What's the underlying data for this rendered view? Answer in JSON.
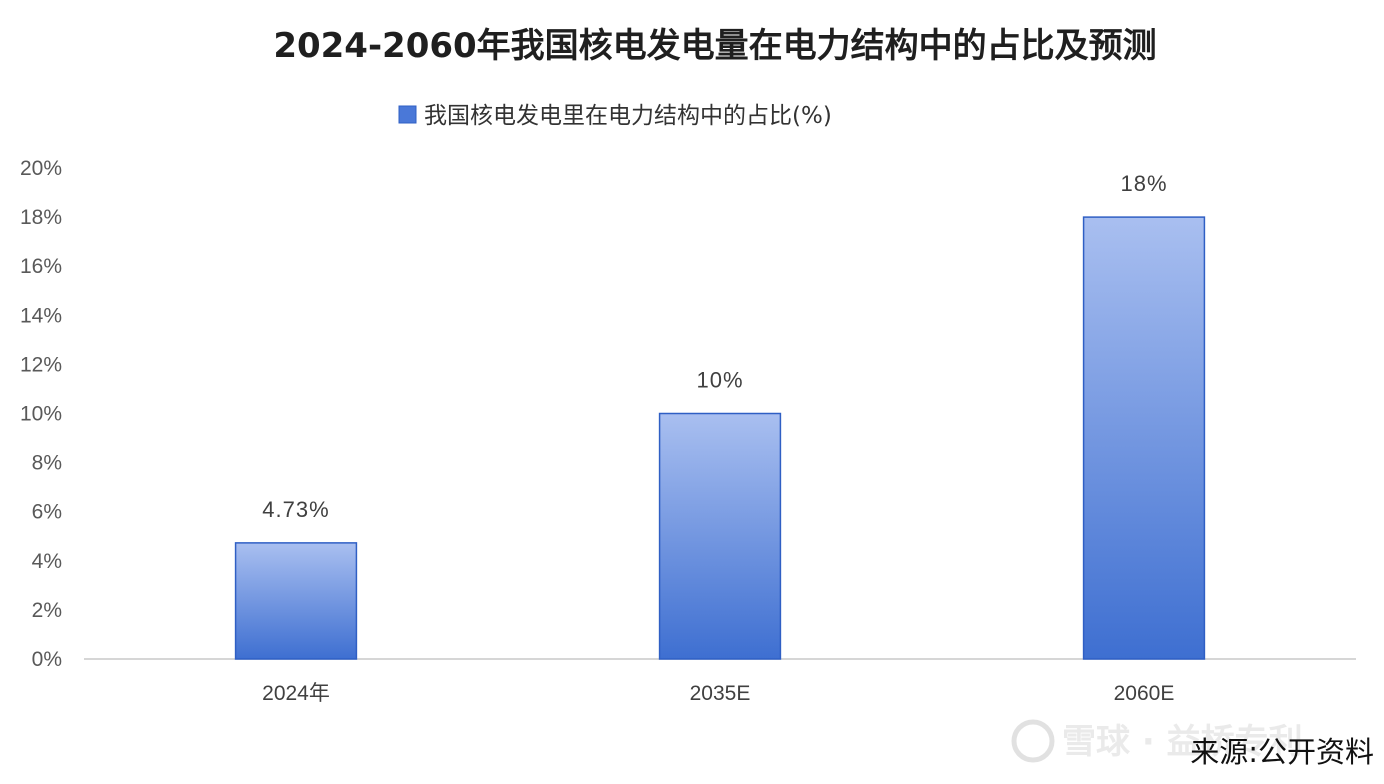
{
  "chart_data": {
    "type": "bar",
    "title": "2024-2060年我国核电发电量在电力结构中的占比及预测",
    "legend": {
      "position": "top",
      "entries": [
        "我国核电发电里在电力结构中的占比(%)"
      ]
    },
    "categories": [
      "2024年",
      "2035E",
      "2060E"
    ],
    "series": [
      {
        "name": "我国核电发电里在电力结构中的占比(%)",
        "values": [
          4.73,
          10,
          18
        ],
        "labels": [
          "4.73%",
          "10%",
          "18%"
        ]
      }
    ],
    "ylim": [
      0,
      20
    ],
    "yticks": [
      "0%",
      "2%",
      "4%",
      "6%",
      "8%",
      "10%",
      "12%",
      "14%",
      "16%",
      "18%",
      "20%"
    ],
    "xlabel": "",
    "ylabel": "",
    "grid": false,
    "colors": {
      "bar_top": "#a9bff0",
      "bar_bottom": "#3e6fd1",
      "bar_border": "#2f5fc4",
      "legend_swatch": "#4a78d8",
      "axis": "#c8c8c8"
    }
  },
  "source": "来源:公开资料",
  "watermark": "雪球 · 益桥专利"
}
